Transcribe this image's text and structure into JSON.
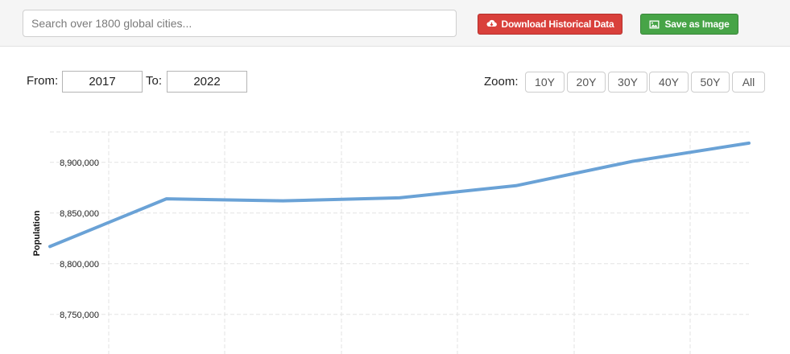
{
  "search": {
    "placeholder": "Search over 1800 global cities..."
  },
  "toolbar": {
    "download_label": "Download Historical Data",
    "save_label": "Save as Image",
    "download_icon": "cloud-download-icon",
    "save_icon": "image-icon",
    "download_color": "#d9403b",
    "save_color": "#47a447"
  },
  "range": {
    "from_label": "From:",
    "from_value": "2017",
    "to_label": "To:",
    "to_value": "2022"
  },
  "zoom": {
    "label": "Zoom:",
    "options": [
      "10Y",
      "20Y",
      "30Y",
      "40Y",
      "50Y",
      "All"
    ]
  },
  "chart_data": {
    "type": "line",
    "ylabel": "Population",
    "ylim": [
      8730000,
      8930000
    ],
    "yticks": [
      8750000,
      8800000,
      8850000,
      8900000
    ],
    "ytick_labels": [
      "8,750,000",
      "8,800,000",
      "8,850,000",
      "8,900,000"
    ],
    "grid": true,
    "series": [
      {
        "color": "#6aa2d6",
        "values": [
          8817000,
          8864000,
          8862000,
          8865000,
          8877000,
          8901000,
          8919000
        ]
      }
    ]
  }
}
